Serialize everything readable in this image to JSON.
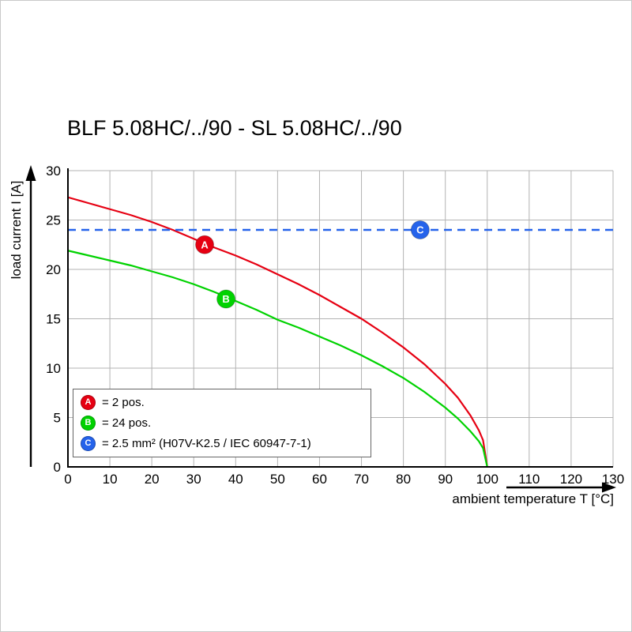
{
  "chart_data": {
    "type": "line",
    "title": "BLF 5.08HC/../90 - SL 5.08HC/../90",
    "xlabel": "ambient temperature T [°C]",
    "ylabel": "load current I [A]",
    "xlim": [
      0,
      130
    ],
    "ylim": [
      0,
      30
    ],
    "x_ticks": [
      0,
      10,
      20,
      30,
      40,
      50,
      60,
      70,
      80,
      90,
      100,
      110,
      120,
      130
    ],
    "y_ticks": [
      0,
      5,
      10,
      15,
      20,
      25,
      30
    ],
    "grid": true,
    "legend_position": "lower left",
    "series": [
      {
        "name": "A",
        "label": "= 2 pos.",
        "color": "#e60012",
        "style": "solid",
        "x": [
          0,
          5,
          10,
          15,
          20,
          25,
          30,
          35,
          40,
          45,
          50,
          55,
          60,
          65,
          70,
          75,
          80,
          85,
          90,
          93,
          96,
          98,
          99,
          100
        ],
        "y": [
          27.3,
          26.7,
          26.1,
          25.5,
          24.8,
          24.0,
          23.1,
          22.2,
          21.4,
          20.5,
          19.5,
          18.5,
          17.4,
          16.2,
          15.0,
          13.6,
          12.1,
          10.4,
          8.4,
          7.0,
          5.2,
          3.7,
          2.7,
          0
        ],
        "marker": {
          "x": 32.6,
          "y": 22.5
        }
      },
      {
        "name": "B",
        "label": "= 24 pos.",
        "color": "#00d200",
        "style": "solid",
        "x": [
          0,
          5,
          10,
          15,
          20,
          25,
          30,
          35,
          40,
          45,
          50,
          55,
          60,
          65,
          70,
          75,
          80,
          85,
          90,
          93,
          96,
          98,
          99,
          100
        ],
        "y": [
          21.9,
          21.4,
          20.9,
          20.4,
          19.8,
          19.2,
          18.5,
          17.7,
          16.8,
          15.9,
          14.9,
          14.1,
          13.2,
          12.3,
          11.3,
          10.2,
          9.0,
          7.6,
          6.0,
          4.9,
          3.6,
          2.6,
          1.9,
          0
        ],
        "marker": {
          "x": 37.7,
          "y": 17.0
        }
      },
      {
        "name": "C",
        "label": "= 2.5 mm² (H07V-K2.5 / IEC 60947-7-1)",
        "color": "#2563eb",
        "style": "dashed",
        "x": [
          0,
          130
        ],
        "y": [
          24,
          24
        ],
        "marker": {
          "x": 84,
          "y": 24
        }
      }
    ]
  }
}
